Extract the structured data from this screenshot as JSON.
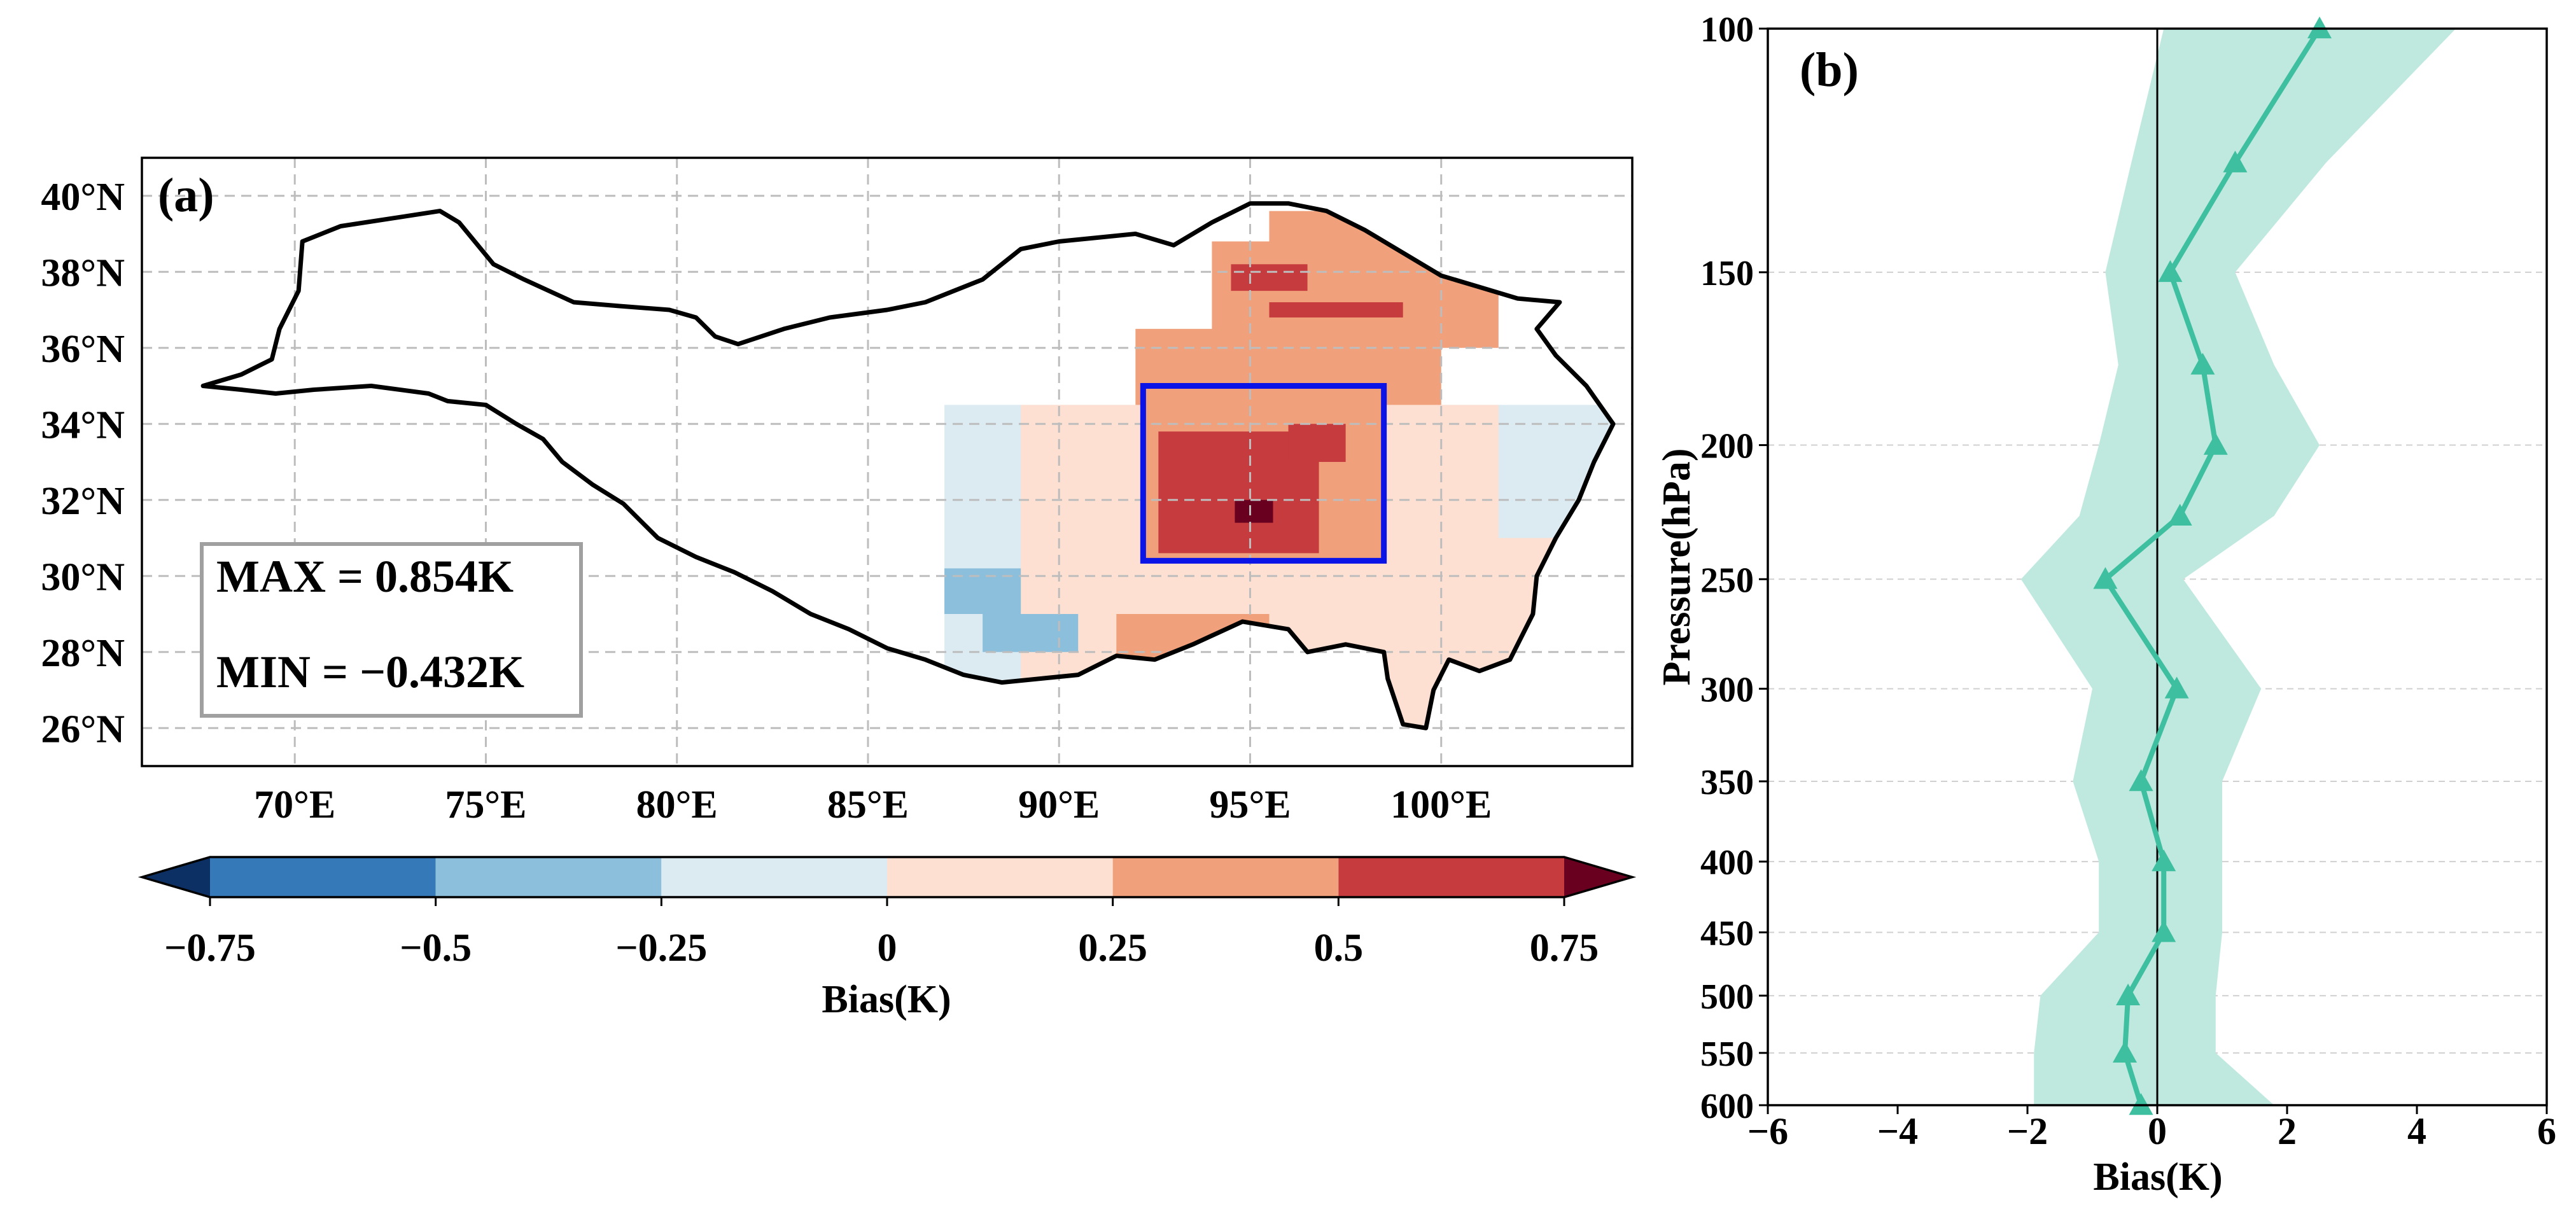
{
  "chart_data": [
    {
      "panel": "(a)",
      "type": "heatmap",
      "xlim": [
        66,
        105
      ],
      "ylim": [
        25,
        41
      ],
      "x_ticks": [
        70,
        75,
        80,
        85,
        90,
        95,
        100
      ],
      "x_tick_labels": [
        "70°E",
        "75°E",
        "80°E",
        "85°E",
        "90°E",
        "95°E",
        "100°E"
      ],
      "y_ticks": [
        26,
        28,
        30,
        32,
        34,
        36,
        38,
        40
      ],
      "y_tick_labels": [
        "26°N",
        "28°N",
        "30°N",
        "32°N",
        "34°N",
        "36°N",
        "38°N",
        "40°N"
      ],
      "grid": true,
      "stats": {
        "max_label": "MAX = 0.854K",
        "min_label": "MIN = −0.432K"
      },
      "box_region": {
        "lon": [
          92.2,
          98.5
        ],
        "lat": [
          30.4,
          35.0
        ],
        "color": "#0a14e6"
      },
      "boundary": [
        [
          67.6,
          35.0
        ],
        [
          68.6,
          35.3
        ],
        [
          69.4,
          35.7
        ],
        [
          69.6,
          36.5
        ],
        [
          70.1,
          37.5
        ],
        [
          70.2,
          38.8
        ],
        [
          71.2,
          39.2
        ],
        [
          72.5,
          39.4
        ],
        [
          73.8,
          39.6
        ],
        [
          74.3,
          39.3
        ],
        [
          75.2,
          38.2
        ],
        [
          76.0,
          37.8
        ],
        [
          77.3,
          37.2
        ],
        [
          78.5,
          37.1
        ],
        [
          79.8,
          37.0
        ],
        [
          80.5,
          36.8
        ],
        [
          81.0,
          36.3
        ],
        [
          81.6,
          36.1
        ],
        [
          82.8,
          36.5
        ],
        [
          84.0,
          36.8
        ],
        [
          85.5,
          37.0
        ],
        [
          86.5,
          37.2
        ],
        [
          88.0,
          37.8
        ],
        [
          89.0,
          38.6
        ],
        [
          90.0,
          38.8
        ],
        [
          91.0,
          38.9
        ],
        [
          92.0,
          39.0
        ],
        [
          93.0,
          38.7
        ],
        [
          94.0,
          39.3
        ],
        [
          95.0,
          39.8
        ],
        [
          96.0,
          39.8
        ],
        [
          97.0,
          39.6
        ],
        [
          98.0,
          39.1
        ],
        [
          99.0,
          38.5
        ],
        [
          100.0,
          37.9
        ],
        [
          101.0,
          37.6
        ],
        [
          102.0,
          37.3
        ],
        [
          103.1,
          37.2
        ],
        [
          102.5,
          36.5
        ],
        [
          103.0,
          35.8
        ],
        [
          103.8,
          35.0
        ],
        [
          104.5,
          34.0
        ],
        [
          104.0,
          33.0
        ],
        [
          103.6,
          32.0
        ],
        [
          103.0,
          31.0
        ],
        [
          102.5,
          30.0
        ],
        [
          102.4,
          29.0
        ],
        [
          101.8,
          27.8
        ],
        [
          101.0,
          27.5
        ],
        [
          100.2,
          27.8
        ],
        [
          99.8,
          27.0
        ],
        [
          99.6,
          26.0
        ],
        [
          99.0,
          26.1
        ],
        [
          98.6,
          27.3
        ],
        [
          98.5,
          28.0
        ],
        [
          97.5,
          28.2
        ],
        [
          96.5,
          28.0
        ],
        [
          96.0,
          28.6
        ],
        [
          94.8,
          28.8
        ],
        [
          93.5,
          28.2
        ],
        [
          92.5,
          27.8
        ],
        [
          91.5,
          27.9
        ],
        [
          90.5,
          27.4
        ],
        [
          89.5,
          27.3
        ],
        [
          88.5,
          27.2
        ],
        [
          87.5,
          27.4
        ],
        [
          86.5,
          27.8
        ],
        [
          85.5,
          28.1
        ],
        [
          84.5,
          28.6
        ],
        [
          83.5,
          29.0
        ],
        [
          82.5,
          29.6
        ],
        [
          81.5,
          30.1
        ],
        [
          80.5,
          30.5
        ],
        [
          79.5,
          31.0
        ],
        [
          78.6,
          31.9
        ],
        [
          77.8,
          32.4
        ],
        [
          77.0,
          33.0
        ],
        [
          76.5,
          33.6
        ],
        [
          75.8,
          34.0
        ],
        [
          75.0,
          34.5
        ],
        [
          74.0,
          34.6
        ],
        [
          73.5,
          34.8
        ],
        [
          72.0,
          35.0
        ],
        [
          70.5,
          34.9
        ],
        [
          69.5,
          34.8
        ],
        [
          68.6,
          34.9
        ],
        [
          67.6,
          35.0
        ]
      ],
      "colorbar": {
        "label": "Bias(K)",
        "tick_values": [
          -0.75,
          -0.5,
          -0.25,
          0,
          0.25,
          0.5,
          0.75
        ],
        "tick_labels": [
          "−0.75",
          "−0.5",
          "−0.25",
          "0",
          "0.25",
          "0.5",
          "0.75"
        ],
        "colors": [
          "#3679b9",
          "#8cbfdc",
          "#dcebf2",
          "#fde0d2",
          "#f0a07a",
          "#c63b3e"
        ],
        "extend_low_color": "#0c2f64",
        "extend_high_color": "#6a0020"
      },
      "field_blocks": [
        {
          "lon": [
            87.0,
            105.0
          ],
          "lat": [
            26.0,
            34.5
          ],
          "value": -0.1
        },
        {
          "lon": [
            89.0,
            101.5
          ],
          "lat": [
            27.0,
            34.5
          ],
          "value": 0.1
        },
        {
          "lon": [
            91.0,
            104.0
          ],
          "lat": [
            26.0,
            31.0
          ],
          "value": 0.1
        },
        {
          "lon": [
            91.5,
            95.5
          ],
          "lat": [
            27.5,
            29.0
          ],
          "value": 0.3
        },
        {
          "lon": [
            88.0,
            90.5
          ],
          "lat": [
            28.0,
            29.0
          ],
          "value": -0.3
        },
        {
          "lon": [
            87.0,
            89.0
          ],
          "lat": [
            29.0,
            30.2
          ],
          "value": -0.3
        },
        {
          "lon": [
            92.0,
            100.0
          ],
          "lat": [
            34.5,
            36.5
          ],
          "value": 0.35
        },
        {
          "lon": [
            94.0,
            101.5
          ],
          "lat": [
            36.0,
            38.8
          ],
          "value": 0.35
        },
        {
          "lon": [
            95.5,
            100.5
          ],
          "lat": [
            38.5,
            39.6
          ],
          "value": 0.35
        },
        {
          "lon": [
            95.5,
            99.0
          ],
          "lat": [
            36.8,
            37.2
          ],
          "value": 0.55
        },
        {
          "lon": [
            94.5,
            96.5
          ],
          "lat": [
            37.5,
            38.2
          ],
          "value": 0.55
        },
        {
          "lon": [
            92.2,
            98.5
          ],
          "lat": [
            30.4,
            35.0
          ],
          "value": 0.35
        },
        {
          "lon": [
            92.6,
            96.8
          ],
          "lat": [
            30.6,
            33.8
          ],
          "value": 0.6
        },
        {
          "lon": [
            96.0,
            97.5
          ],
          "lat": [
            33.0,
            34.0
          ],
          "value": 0.6
        },
        {
          "lon": [
            94.6,
            95.6
          ],
          "lat": [
            31.4,
            32.0
          ],
          "value": 0.85
        }
      ]
    },
    {
      "panel": "(b)",
      "type": "line",
      "xlabel": "Bias(K)",
      "ylabel": "Pressure(hPa)",
      "xlim": [
        -6,
        6
      ],
      "ylim": [
        600,
        100
      ],
      "y_scale": "log",
      "x_ticks": [
        -6,
        -4,
        -2,
        0,
        2,
        4,
        6
      ],
      "x_tick_labels": [
        "−6",
        "−4",
        "−2",
        "0",
        "2",
        "4",
        "6"
      ],
      "y_ticks": [
        100,
        150,
        200,
        250,
        300,
        350,
        400,
        450,
        500,
        550,
        600
      ],
      "y_tick_labels": [
        "100",
        "150",
        "200",
        "250",
        "300",
        "350",
        "400",
        "450",
        "500",
        "550",
        "600"
      ],
      "color": "#3dbfa0",
      "shade_color": "#bfe9df",
      "series": [
        {
          "name": "mean bias",
          "pressure": [
            100,
            125,
            150,
            175,
            200,
            225,
            250,
            300,
            350,
            400,
            450,
            500,
            550,
            600
          ],
          "values": [
            2.5,
            1.2,
            0.2,
            0.7,
            0.9,
            0.35,
            -0.8,
            0.3,
            -0.25,
            0.1,
            0.1,
            -0.45,
            -0.5,
            -0.25
          ]
        },
        {
          "name": "lower bound",
          "pressure": [
            100,
            125,
            150,
            175,
            200,
            225,
            250,
            300,
            350,
            400,
            450,
            500,
            550,
            600
          ],
          "values": [
            0.1,
            -0.4,
            -0.8,
            -0.6,
            -0.9,
            -1.2,
            -2.1,
            -1.0,
            -1.3,
            -0.9,
            -0.9,
            -1.8,
            -1.9,
            -1.9
          ]
        },
        {
          "name": "upper bound",
          "pressure": [
            100,
            125,
            150,
            175,
            200,
            225,
            250,
            300,
            350,
            400,
            450,
            500,
            550,
            600
          ],
          "values": [
            4.6,
            2.6,
            1.2,
            1.8,
            2.5,
            1.8,
            0.4,
            1.6,
            1.0,
            1.0,
            1.0,
            0.9,
            0.9,
            1.8
          ]
        }
      ]
    }
  ]
}
